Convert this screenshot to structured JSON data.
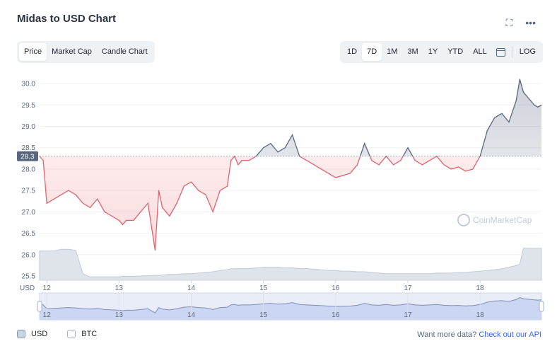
{
  "title": "Midas to USD Chart",
  "tabs": [
    {
      "label": "Price",
      "active": true
    },
    {
      "label": "Market Cap",
      "active": false
    },
    {
      "label": "Candle Chart",
      "active": false
    }
  ],
  "ranges": [
    {
      "label": "1D",
      "active": false
    },
    {
      "label": "7D",
      "active": true
    },
    {
      "label": "1M",
      "active": false
    },
    {
      "label": "3M",
      "active": false
    },
    {
      "label": "1Y",
      "active": false
    },
    {
      "label": "YTD",
      "active": false
    },
    {
      "label": "ALL",
      "active": false
    }
  ],
  "log_label": "LOG",
  "currency_label": "USD",
  "current_price_label": "28.3",
  "watermark": "CoinMarketCap",
  "legend": {
    "usd": "USD",
    "btc": "BTC"
  },
  "more": {
    "text": "Want more data?",
    "link": "Check out our API"
  },
  "colors": {
    "up": "#16c784",
    "down": "#ea3943",
    "line_up": "#58667e",
    "line_down": "#e5606b",
    "accent": "#3861fb"
  },
  "chart_data": {
    "type": "line",
    "ylim": [
      25.4,
      30.2
    ],
    "yticks": [
      25.5,
      26.0,
      26.5,
      27.0,
      27.5,
      28.0,
      28.5,
      29.0,
      29.5,
      30.0
    ],
    "xlim": [
      11.9,
      18.85
    ],
    "xticks": [
      "12",
      "13",
      "14",
      "15",
      "16",
      "17",
      "18"
    ],
    "baseline": 28.3,
    "x": [
      11.9,
      11.95,
      12.0,
      12.1,
      12.2,
      12.3,
      12.4,
      12.5,
      12.6,
      12.7,
      12.8,
      12.9,
      13.0,
      13.05,
      13.1,
      13.2,
      13.3,
      13.4,
      13.5,
      13.55,
      13.6,
      13.7,
      13.8,
      13.9,
      14.0,
      14.1,
      14.2,
      14.3,
      14.4,
      14.5,
      14.55,
      14.6,
      14.65,
      14.7,
      14.8,
      14.9,
      15.0,
      15.1,
      15.2,
      15.3,
      15.4,
      15.5,
      15.6,
      15.7,
      15.8,
      15.9,
      16.0,
      16.1,
      16.2,
      16.3,
      16.4,
      16.5,
      16.6,
      16.7,
      16.8,
      16.9,
      17.0,
      17.1,
      17.2,
      17.3,
      17.4,
      17.5,
      17.6,
      17.7,
      17.8,
      17.9,
      18.0,
      18.1,
      18.2,
      18.3,
      18.4,
      18.5,
      18.55,
      18.6,
      18.7,
      18.75,
      18.8,
      18.85
    ],
    "y": [
      28.3,
      28.2,
      27.2,
      27.3,
      27.4,
      27.5,
      27.4,
      27.2,
      27.1,
      27.3,
      27.0,
      26.9,
      26.8,
      26.7,
      26.8,
      26.8,
      27.0,
      27.2,
      26.1,
      27.5,
      27.1,
      26.9,
      27.2,
      27.6,
      27.7,
      27.5,
      27.4,
      27.0,
      27.5,
      27.6,
      28.2,
      28.3,
      28.1,
      28.2,
      28.2,
      28.3,
      28.5,
      28.6,
      28.4,
      28.5,
      28.8,
      28.3,
      28.2,
      28.1,
      28.0,
      27.9,
      27.8,
      27.85,
      27.9,
      28.1,
      28.6,
      28.2,
      28.1,
      28.3,
      28.1,
      28.2,
      28.5,
      28.2,
      28.1,
      28.2,
      28.3,
      28.1,
      28.0,
      28.05,
      27.95,
      28.0,
      28.3,
      28.9,
      29.2,
      29.3,
      29.1,
      29.6,
      30.1,
      29.8,
      29.6,
      29.5,
      29.45,
      29.5
    ],
    "volume": [
      0.9,
      0.9,
      0.9,
      0.9,
      0.95,
      0.95,
      0.92,
      0.2,
      0.1,
      0.1,
      0.1,
      0.1,
      0.1,
      0.12,
      0.12,
      0.12,
      0.13,
      0.14,
      0.15,
      0.15,
      0.16,
      0.18,
      0.18,
      0.2,
      0.2,
      0.22,
      0.24,
      0.26,
      0.3,
      0.33,
      0.35,
      0.35,
      0.36,
      0.36,
      0.36,
      0.38,
      0.4,
      0.4,
      0.4,
      0.38,
      0.38,
      0.36,
      0.36,
      0.34,
      0.32,
      0.3,
      0.3,
      0.28,
      0.28,
      0.26,
      0.26,
      0.24,
      0.22,
      0.2,
      0.2,
      0.2,
      0.2,
      0.2,
      0.2,
      0.2,
      0.22,
      0.22,
      0.22,
      0.24,
      0.24,
      0.26,
      0.28,
      0.3,
      0.32,
      0.35,
      0.4,
      0.45,
      0.5,
      0.98,
      0.98,
      0.98,
      0.98,
      0.98
    ]
  }
}
